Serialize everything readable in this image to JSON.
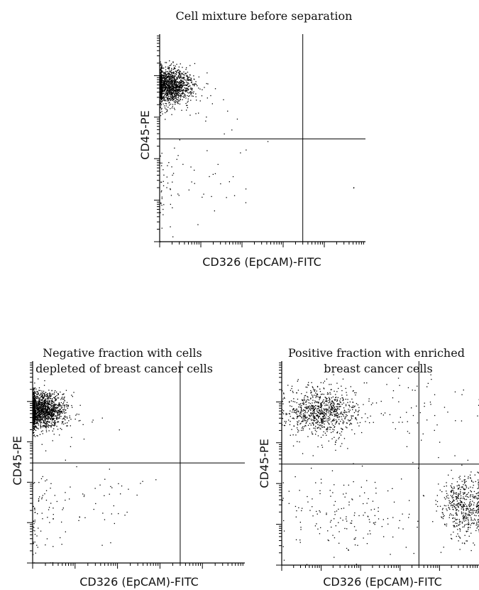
{
  "chart_data": [
    {
      "type": "scatter",
      "title": [
        "Cell mixture before separation"
      ],
      "xlabel": "CD326 (EpCAM)-FITC",
      "ylabel": "CD45-PE",
      "xscale": "log",
      "yscale": "log",
      "xlim": [
        1,
        100000
      ],
      "ylim": [
        1,
        100000
      ],
      "quadrant_gates": {
        "x": 3000,
        "y": 300
      },
      "populations": [
        {
          "center": [
            1.6,
            6000
          ],
          "spread": [
            0.28,
            0.22
          ],
          "count": 1400
        },
        {
          "center": [
            1.3,
            20
          ],
          "spread": [
            0.25,
            0.6
          ],
          "count": 45
        },
        {
          "center": [
            20,
            40
          ],
          "spread": [
            0.55,
            0.45
          ],
          "count": 30
        },
        {
          "center": [
            5,
            3000
          ],
          "spread": [
            0.5,
            0.35
          ],
          "count": 30
        },
        {
          "center": [
            50000,
            20
          ],
          "spread": [
            0.02,
            0.02
          ],
          "count": 2
        }
      ]
    },
    {
      "type": "scatter",
      "title": [
        "Negative fraction with cells",
        "depleted of breast cancer cells"
      ],
      "xlabel": "CD326 (EpCAM)-FITC",
      "ylabel": "CD45-PE",
      "xscale": "log",
      "yscale": "log",
      "xlim": [
        1,
        100000
      ],
      "ylim": [
        1,
        100000
      ],
      "quadrant_gates": {
        "x": 3000,
        "y": 300
      },
      "populations": [
        {
          "center": [
            1.6,
            6000
          ],
          "spread": [
            0.27,
            0.22
          ],
          "count": 1500
        },
        {
          "center": [
            1.4,
            15
          ],
          "spread": [
            0.3,
            0.6
          ],
          "count": 70
        },
        {
          "center": [
            30,
            30
          ],
          "spread": [
            0.6,
            0.45
          ],
          "count": 40
        },
        {
          "center": [
            8,
            3000
          ],
          "spread": [
            0.5,
            0.35
          ],
          "count": 35
        }
      ]
    },
    {
      "type": "scatter",
      "title": [
        "Positive fraction with enriched",
        "breast cancer cells"
      ],
      "xlabel": "CD326 (EpCAM)-FITC",
      "ylabel": "CD45-PE",
      "xscale": "log",
      "yscale": "log",
      "xlim": [
        1,
        100000
      ],
      "ylim": [
        1,
        100000
      ],
      "quadrant_gates": {
        "x": 3000,
        "y": 300
      },
      "populations": [
        {
          "center": [
            10,
            6000
          ],
          "spread": [
            0.45,
            0.3
          ],
          "count": 850
        },
        {
          "center": [
            40000,
            30
          ],
          "spread": [
            0.3,
            0.4
          ],
          "count": 480
        },
        {
          "center": [
            40,
            20
          ],
          "spread": [
            0.8,
            0.6
          ],
          "count": 170
        },
        {
          "center": [
            2000,
            5000
          ],
          "spread": [
            0.8,
            0.6
          ],
          "count": 70
        }
      ]
    }
  ]
}
